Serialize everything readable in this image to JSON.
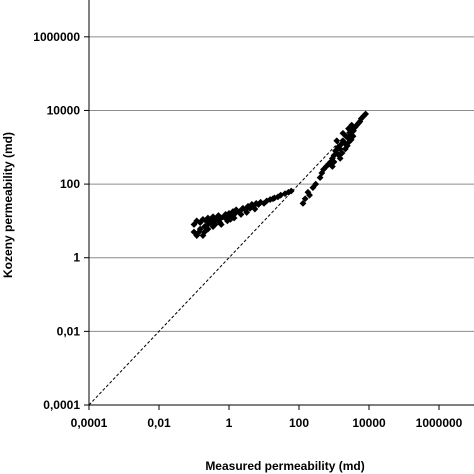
{
  "chart_data": {
    "type": "scatter",
    "xlabel": "Measured permeability (md)",
    "ylabel": "Kozeny permeability (md)",
    "x_scale": "log",
    "y_scale": "log",
    "xlim": [
      0.0001,
      10000000
    ],
    "ylim": [
      0.0001,
      10000000
    ],
    "x_ticks": [
      {
        "value": 0.0001,
        "label": "0,0001"
      },
      {
        "value": 0.01,
        "label": "0,01"
      },
      {
        "value": 1,
        "label": "1"
      },
      {
        "value": 100,
        "label": "100"
      },
      {
        "value": 10000,
        "label": "10000"
      },
      {
        "value": 1000000,
        "label": "1000000"
      }
    ],
    "y_ticks": [
      {
        "value": 0.0001,
        "label": "0,0001"
      },
      {
        "value": 0.01,
        "label": "0,01"
      },
      {
        "value": 1,
        "label": "1"
      },
      {
        "value": 100,
        "label": "100"
      },
      {
        "value": 10000,
        "label": "10000"
      },
      {
        "value": 1000000,
        "label": "1000000"
      }
    ],
    "grid": "horizontal",
    "reference_line": {
      "style": "dashed",
      "points": [
        [
          0.0001,
          0.0001
        ],
        [
          8000,
          8000
        ]
      ]
    },
    "marker_color": "#000000",
    "series": [
      {
        "marker": "diamond",
        "points": [
          [
            0.1,
            5
          ],
          [
            0.1,
            8
          ],
          [
            0.12,
            10
          ],
          [
            0.15,
            6
          ],
          [
            0.15,
            9
          ],
          [
            0.18,
            11
          ],
          [
            0.2,
            7
          ],
          [
            0.22,
            10
          ],
          [
            0.25,
            12
          ],
          [
            0.25,
            8
          ],
          [
            0.3,
            9
          ],
          [
            0.3,
            11
          ],
          [
            0.35,
            13
          ],
          [
            0.4,
            10
          ],
          [
            0.45,
            12
          ],
          [
            0.5,
            11
          ],
          [
            0.5,
            14
          ],
          [
            0.55,
            9
          ],
          [
            0.6,
            12
          ],
          [
            0.7,
            13
          ],
          [
            0.8,
            12
          ],
          [
            0.8,
            15
          ],
          [
            1,
            13
          ],
          [
            1,
            16
          ],
          [
            1.2,
            14
          ],
          [
            1.3,
            18
          ],
          [
            1.5,
            16
          ],
          [
            1.6,
            20
          ],
          [
            2,
            18
          ],
          [
            2.5,
            22
          ],
          [
            3,
            20
          ],
          [
            3.5,
            25
          ],
          [
            4,
            22
          ],
          [
            4.5,
            28
          ],
          [
            5,
            25
          ],
          [
            6,
            30
          ],
          [
            7,
            28
          ],
          [
            8,
            32
          ],
          [
            10,
            30
          ],
          [
            12,
            35
          ],
          [
            15,
            38
          ],
          [
            18,
            40
          ],
          [
            20,
            42
          ],
          [
            25,
            45
          ],
          [
            30,
            50
          ],
          [
            40,
            55
          ],
          [
            50,
            60
          ],
          [
            60,
            65
          ],
          [
            0.12,
            4
          ],
          [
            0.14,
            5
          ],
          [
            0.18,
            4
          ],
          [
            0.2,
            5
          ],
          [
            0.25,
            6
          ],
          [
            0.35,
            7
          ],
          [
            0.4,
            8
          ],
          [
            0.6,
            8
          ],
          [
            0.9,
            10
          ],
          [
            1.1,
            11
          ],
          [
            1.4,
            12
          ],
          [
            2.2,
            15
          ],
          [
            3.2,
            17
          ],
          [
            5.5,
            21
          ],
          [
            130,
            30
          ],
          [
            150,
            40
          ],
          [
            180,
            60
          ],
          [
            200,
            50
          ],
          [
            250,
            80
          ],
          [
            300,
            100
          ],
          [
            400,
            150
          ],
          [
            450,
            200
          ],
          [
            500,
            250
          ],
          [
            600,
            300
          ],
          [
            700,
            350
          ],
          [
            800,
            400
          ],
          [
            900,
            500
          ],
          [
            1000,
            600
          ],
          [
            1100,
            800
          ],
          [
            1200,
            700
          ],
          [
            1300,
            1000
          ],
          [
            1500,
            900
          ],
          [
            1600,
            1200
          ],
          [
            1800,
            1500
          ],
          [
            2000,
            1300
          ],
          [
            2200,
            2000
          ],
          [
            2500,
            1800
          ],
          [
            2800,
            2500
          ],
          [
            3000,
            2200
          ],
          [
            3300,
            3000
          ],
          [
            3600,
            2800
          ],
          [
            4000,
            3500
          ],
          [
            4500,
            4000
          ],
          [
            5000,
            4500
          ],
          [
            5500,
            5000
          ],
          [
            6000,
            6000
          ],
          [
            7000,
            7000
          ],
          [
            8000,
            8000
          ],
          [
            1000,
            400
          ],
          [
            1400,
            600
          ],
          [
            1700,
            700
          ],
          [
            2100,
            900
          ],
          [
            2400,
            1100
          ],
          [
            2700,
            1400
          ],
          [
            3100,
            1600
          ],
          [
            3500,
            2000
          ],
          [
            1200,
            1500
          ],
          [
            1800,
            2400
          ],
          [
            2600,
            3200
          ],
          [
            3200,
            4000
          ],
          [
            900,
            300
          ],
          [
            1500,
            500
          ]
        ]
      }
    ]
  }
}
